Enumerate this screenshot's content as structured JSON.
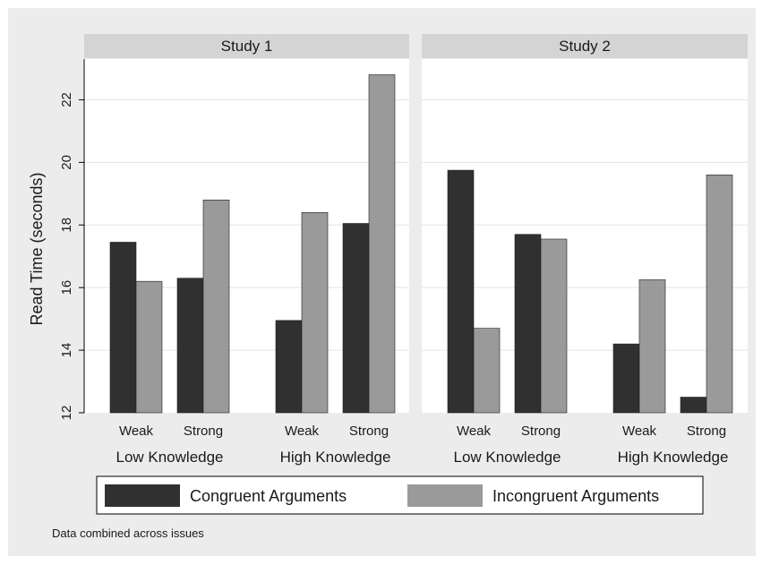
{
  "chart_data": {
    "type": "bar",
    "ylabel": "Read Time (seconds)",
    "ylim": [
      12,
      23.3
    ],
    "yticks": [
      12,
      14,
      16,
      18,
      20,
      22
    ],
    "grid": true,
    "legend_position": "bottom",
    "note": "Data combined across issues",
    "series": [
      {
        "name": "Congruent Arguments",
        "color": "#303030"
      },
      {
        "name": "Incongruent Arguments",
        "color": "#9a9a9a"
      }
    ],
    "panels": [
      {
        "title": "Study 1",
        "groups": [
          {
            "label": "Low Knowledge",
            "categories": [
              {
                "label": "Weak",
                "values": [
                  17.45,
                  16.2
                ]
              },
              {
                "label": "Strong",
                "values": [
                  16.3,
                  18.8
                ]
              }
            ]
          },
          {
            "label": "High Knowledge",
            "categories": [
              {
                "label": "Weak",
                "values": [
                  14.95,
                  18.4
                ]
              },
              {
                "label": "Strong",
                "values": [
                  18.05,
                  22.8
                ]
              }
            ]
          }
        ]
      },
      {
        "title": "Study 2",
        "groups": [
          {
            "label": "Low Knowledge",
            "categories": [
              {
                "label": "Weak",
                "values": [
                  19.75,
                  14.7
                ]
              },
              {
                "label": "Strong",
                "values": [
                  17.7,
                  17.55
                ]
              }
            ]
          },
          {
            "label": "High Knowledge",
            "categories": [
              {
                "label": "Weak",
                "values": [
                  14.2,
                  16.25
                ]
              },
              {
                "label": "Strong",
                "values": [
                  12.5,
                  19.6
                ]
              }
            ]
          }
        ]
      }
    ]
  }
}
